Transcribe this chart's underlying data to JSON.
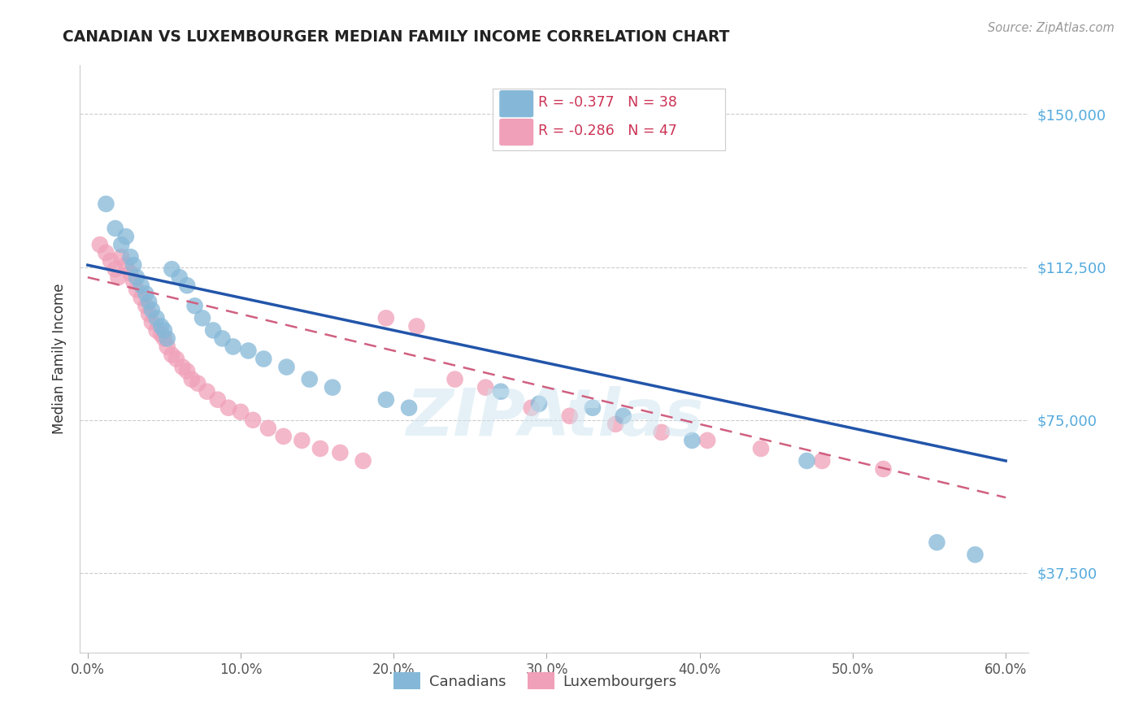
{
  "title": "CANADIAN VS LUXEMBOURGER MEDIAN FAMILY INCOME CORRELATION CHART",
  "source": "Source: ZipAtlas.com",
  "ylabel": "Median Family Income",
  "xlabel_ticks": [
    "0.0%",
    "10.0%",
    "20.0%",
    "30.0%",
    "40.0%",
    "50.0%",
    "60.0%"
  ],
  "xlabel_vals": [
    0.0,
    0.1,
    0.2,
    0.3,
    0.4,
    0.5,
    0.6
  ],
  "ytick_labels": [
    "$37,500",
    "$75,000",
    "$112,500",
    "$150,000"
  ],
  "ytick_vals": [
    37500,
    75000,
    112500,
    150000
  ],
  "ylim": [
    18000,
    162000
  ],
  "xlim": [
    -0.005,
    0.615
  ],
  "canadian_color": "#85b8d8",
  "luxembourger_color": "#f0a0b8",
  "canadian_line_color": "#2255aa",
  "luxembourger_line_color": "#d06080",
  "grid_color": "#cccccc",
  "background_color": "#ffffff",
  "right_label_color": "#55aadd",
  "legend_R_canadian": "R = -0.377",
  "legend_N_canadian": "N = 38",
  "legend_R_luxembourger": "R = -0.286",
  "legend_N_luxembourger": "N = 47",
  "watermark": "ZIPAtlas",
  "canadians_label": "Canadians",
  "luxembourgers_label": "Luxembourgers",
  "can_x": [
    0.012,
    0.018,
    0.022,
    0.025,
    0.028,
    0.03,
    0.032,
    0.035,
    0.038,
    0.04,
    0.042,
    0.045,
    0.048,
    0.05,
    0.052,
    0.055,
    0.06,
    0.065,
    0.07,
    0.075,
    0.082,
    0.088,
    0.095,
    0.105,
    0.115,
    0.13,
    0.145,
    0.16,
    0.195,
    0.21,
    0.27,
    0.295,
    0.33,
    0.35,
    0.395,
    0.47,
    0.555,
    0.58
  ],
  "can_y": [
    128000,
    122000,
    118000,
    120000,
    115000,
    113000,
    110000,
    108000,
    106000,
    104000,
    102000,
    100000,
    98000,
    97000,
    95000,
    112000,
    110000,
    108000,
    103000,
    100000,
    97000,
    95000,
    93000,
    92000,
    90000,
    88000,
    85000,
    83000,
    80000,
    78000,
    82000,
    79000,
    78000,
    76000,
    70000,
    65000,
    45000,
    42000
  ],
  "lux_x": [
    0.008,
    0.012,
    0.015,
    0.018,
    0.02,
    0.022,
    0.025,
    0.028,
    0.03,
    0.032,
    0.035,
    0.038,
    0.04,
    0.042,
    0.045,
    0.048,
    0.05,
    0.052,
    0.055,
    0.058,
    0.062,
    0.065,
    0.068,
    0.072,
    0.078,
    0.085,
    0.092,
    0.1,
    0.108,
    0.118,
    0.128,
    0.14,
    0.152,
    0.165,
    0.18,
    0.195,
    0.215,
    0.24,
    0.26,
    0.29,
    0.315,
    0.345,
    0.375,
    0.405,
    0.44,
    0.48,
    0.52
  ],
  "lux_y": [
    118000,
    116000,
    114000,
    112000,
    110000,
    115000,
    113000,
    111000,
    109000,
    107000,
    105000,
    103000,
    101000,
    99000,
    97000,
    96000,
    95000,
    93000,
    91000,
    90000,
    88000,
    87000,
    85000,
    84000,
    82000,
    80000,
    78000,
    77000,
    75000,
    73000,
    71000,
    70000,
    68000,
    67000,
    65000,
    100000,
    98000,
    85000,
    83000,
    78000,
    76000,
    74000,
    72000,
    70000,
    68000,
    65000,
    63000
  ]
}
